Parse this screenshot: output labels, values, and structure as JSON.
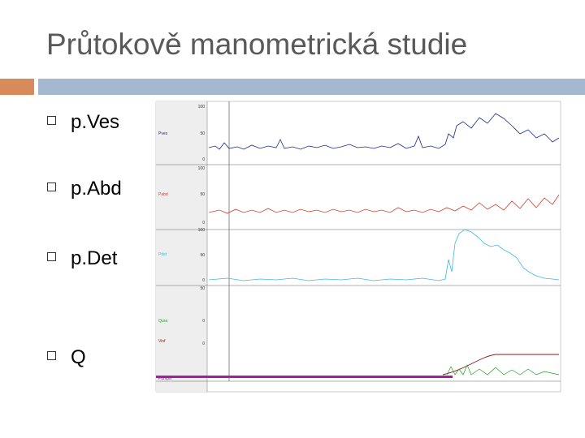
{
  "title": "Průtokově manometrická studie",
  "bullets": [
    "p.Ves",
    "p.Abd",
    "p.Det",
    "Q"
  ],
  "image": {
    "panel_labels": [
      "Pves",
      "Pabd",
      "Pdet",
      "Qura",
      "Vinf",
      "Pumpa"
    ],
    "scale_labels": [
      "100",
      "50",
      "0",
      "100",
      "50",
      "0",
      "100",
      "50",
      "0",
      "50",
      "0",
      "0"
    ]
  }
}
